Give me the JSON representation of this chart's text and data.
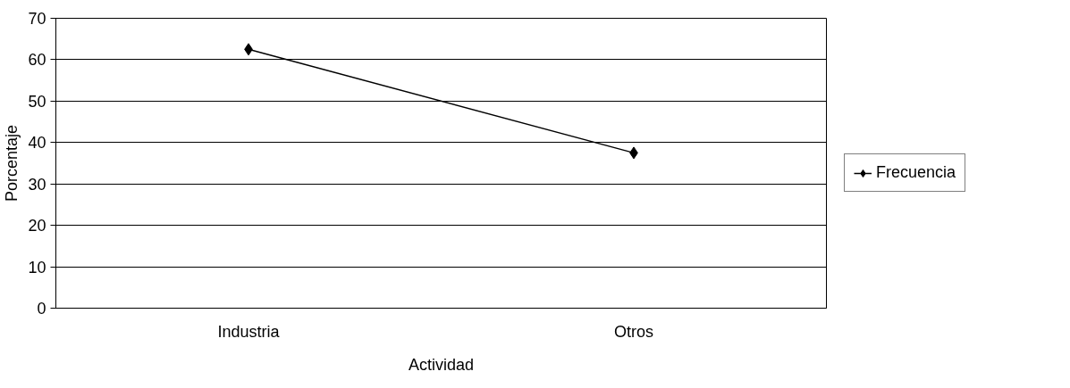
{
  "chart_data": {
    "type": "line",
    "xlabel": "Actividad",
    "ylabel": "Porcentaje",
    "categories": [
      "Industria",
      "Otros"
    ],
    "series": [
      {
        "name": "Frecuencia",
        "color": "#000000",
        "values": [
          62.5,
          37.5
        ]
      }
    ],
    "ylim": [
      0,
      70
    ],
    "yticks": [
      0,
      10,
      20,
      30,
      40,
      50,
      60,
      70
    ],
    "grid": "y",
    "legend": "right",
    "marker": "diamond",
    "line_style": "solid"
  }
}
